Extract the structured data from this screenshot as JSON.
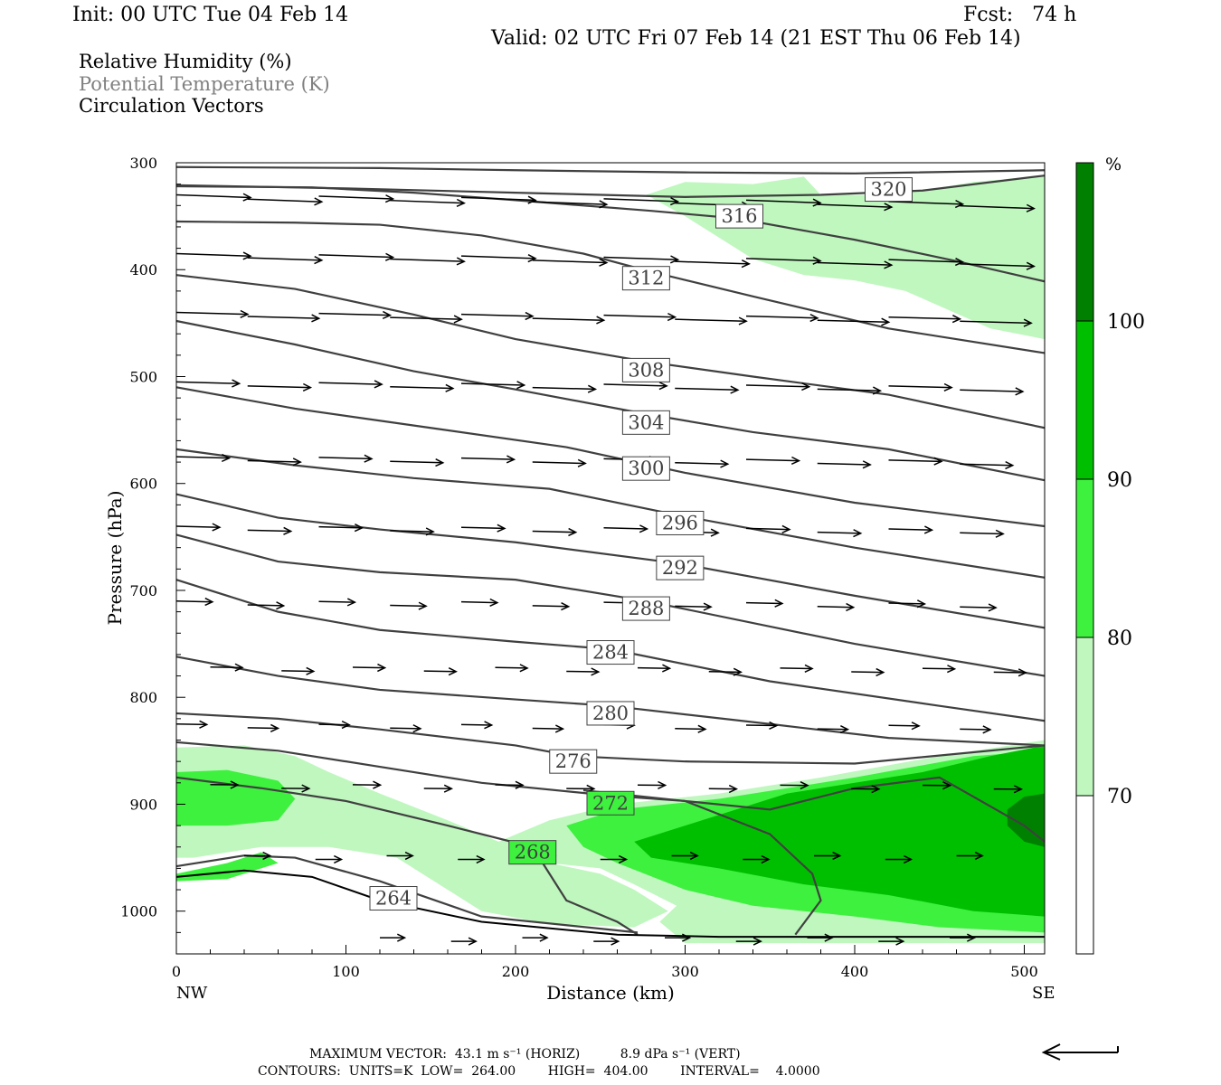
{
  "header": {
    "init": "Init: 00 UTC Tue 04 Feb 14",
    "fcst": "Fcst:   74 h",
    "valid": "Valid: 02 UTC Fri 07 Feb 14 (21 EST Thu 06 Feb 14)"
  },
  "legend": {
    "items": [
      "Relative Humidity (%)",
      "Potential Temperature (K)",
      "Circulation Vectors"
    ]
  },
  "footer": {
    "max_vector": "MAXIMUM VECTOR:  43.1 m s⁻¹ (HORIZ)          8.9 dPa s⁻¹ (VERT)",
    "contours": "CONTOURS:  UNITS=K  LOW=  264.00        HIGH=  404.00        INTERVAL=    4.0000"
  },
  "colors": {
    "rh_70_80": "#bff7bf",
    "rh_80_90": "#3ef13e",
    "rh_90_100": "#00bf00",
    "rh_100": "#008000",
    "contour": "#404040"
  },
  "chart_data": {
    "type": "cross-section",
    "xlabel": "Distance (km)",
    "ylabel": "Pressure (hPa)",
    "xlim": [
      0,
      512
    ],
    "ylim": [
      1040,
      300
    ],
    "x_ticks": [
      "0",
      "100",
      "200",
      "300",
      "400",
      "500"
    ],
    "x_end_labels": [
      "NW",
      "SE"
    ],
    "y_ticks": [
      "300",
      "400",
      "500",
      "600",
      "700",
      "800",
      "900",
      "1000"
    ],
    "colorbar": {
      "unit": "%",
      "levels": [
        "70",
        "80",
        "90",
        "100"
      ]
    },
    "contour_labels": [
      {
        "text": "320",
        "x": 420,
        "p": 325
      },
      {
        "text": "316",
        "x": 332,
        "p": 350
      },
      {
        "text": "312",
        "x": 277,
        "p": 408
      },
      {
        "text": "308",
        "x": 277,
        "p": 494
      },
      {
        "text": "304",
        "x": 277,
        "p": 543
      },
      {
        "text": "300",
        "x": 277,
        "p": 586
      },
      {
        "text": "296",
        "x": 297,
        "p": 637
      },
      {
        "text": "292",
        "x": 297,
        "p": 679
      },
      {
        "text": "288",
        "x": 277,
        "p": 717
      },
      {
        "text": "284",
        "x": 256,
        "p": 758
      },
      {
        "text": "280",
        "x": 256,
        "p": 815
      },
      {
        "text": "276",
        "x": 234,
        "p": 860
      },
      {
        "text": "272",
        "x": 256,
        "p": 899
      },
      {
        "text": "268",
        "x": 210,
        "p": 945
      },
      {
        "text": "264",
        "x": 128,
        "p": 988
      }
    ],
    "isentropes_K": [
      {
        "theta": 324,
        "points": [
          [
            0,
            304
          ],
          [
            120,
            305
          ],
          [
            200,
            307
          ],
          [
            300,
            309
          ],
          [
            400,
            310
          ],
          [
            512,
            307
          ]
        ]
      },
      {
        "theta": 320,
        "points": [
          [
            0,
            321
          ],
          [
            100,
            324
          ],
          [
            200,
            328
          ],
          [
            300,
            332
          ],
          [
            380,
            330
          ],
          [
            440,
            326
          ],
          [
            512,
            312
          ]
        ]
      },
      {
        "theta": 316,
        "points": [
          [
            0,
            322
          ],
          [
            80,
            323
          ],
          [
            140,
            328
          ],
          [
            200,
            335
          ],
          [
            280,
            345
          ],
          [
            330,
            352
          ],
          [
            400,
            372
          ],
          [
            460,
            392
          ],
          [
            512,
            411
          ]
        ]
      },
      {
        "theta": 312,
        "points": [
          [
            0,
            355
          ],
          [
            70,
            356
          ],
          [
            120,
            358
          ],
          [
            180,
            368
          ],
          [
            240,
            385
          ],
          [
            280,
            402
          ],
          [
            340,
            425
          ],
          [
            420,
            455
          ],
          [
            512,
            478
          ]
        ]
      },
      {
        "theta": 308,
        "points": [
          [
            0,
            405
          ],
          [
            70,
            418
          ],
          [
            140,
            442
          ],
          [
            200,
            465
          ],
          [
            277,
            486
          ],
          [
            340,
            500
          ],
          [
            420,
            517
          ],
          [
            512,
            548
          ]
        ]
      },
      {
        "theta": 304,
        "points": [
          [
            0,
            448
          ],
          [
            70,
            470
          ],
          [
            140,
            495
          ],
          [
            200,
            512
          ],
          [
            277,
            535
          ],
          [
            340,
            552
          ],
          [
            420,
            568
          ],
          [
            512,
            597
          ]
        ]
      },
      {
        "theta": 300,
        "points": [
          [
            0,
            510
          ],
          [
            70,
            530
          ],
          [
            150,
            548
          ],
          [
            230,
            566
          ],
          [
            300,
            590
          ],
          [
            400,
            618
          ],
          [
            512,
            640
          ]
        ]
      },
      {
        "theta": 296,
        "points": [
          [
            0,
            568
          ],
          [
            70,
            583
          ],
          [
            140,
            595
          ],
          [
            220,
            605
          ],
          [
            297,
            630
          ],
          [
            400,
            660
          ],
          [
            512,
            688
          ]
        ]
      },
      {
        "theta": 292,
        "points": [
          [
            0,
            610
          ],
          [
            60,
            632
          ],
          [
            120,
            643
          ],
          [
            200,
            655
          ],
          [
            297,
            675
          ],
          [
            400,
            705
          ],
          [
            512,
            735
          ]
        ]
      },
      {
        "theta": 288,
        "points": [
          [
            0,
            648
          ],
          [
            60,
            673
          ],
          [
            120,
            683
          ],
          [
            200,
            690
          ],
          [
            277,
            710
          ],
          [
            400,
            750
          ],
          [
            512,
            780
          ]
        ]
      },
      {
        "theta": 284,
        "points": [
          [
            0,
            690
          ],
          [
            60,
            720
          ],
          [
            120,
            737
          ],
          [
            200,
            748
          ],
          [
            256,
            755
          ],
          [
            350,
            785
          ],
          [
            450,
            808
          ],
          [
            512,
            822
          ]
        ]
      },
      {
        "theta": 280,
        "points": [
          [
            0,
            762
          ],
          [
            60,
            780
          ],
          [
            120,
            793
          ],
          [
            200,
            802
          ],
          [
            256,
            808
          ],
          [
            350,
            825
          ],
          [
            420,
            838
          ],
          [
            512,
            845
          ]
        ]
      },
      {
        "theta": 276,
        "points": [
          [
            0,
            815
          ],
          [
            60,
            820
          ],
          [
            120,
            830
          ],
          [
            200,
            845
          ],
          [
            234,
            855
          ],
          [
            300,
            860
          ],
          [
            400,
            862
          ],
          [
            512,
            845
          ]
        ]
      },
      {
        "theta": 272,
        "points": [
          [
            0,
            842
          ],
          [
            60,
            850
          ],
          [
            120,
            865
          ],
          [
            180,
            880
          ],
          [
            256,
            892
          ],
          [
            300,
            897
          ],
          [
            350,
            905
          ],
          [
            400,
            885
          ],
          [
            450,
            875
          ],
          [
            500,
            920
          ],
          [
            512,
            935
          ]
        ]
      },
      {
        "theta": 268,
        "points": [
          [
            0,
            875
          ],
          [
            50,
            885
          ],
          [
            100,
            897
          ],
          [
            160,
            920
          ],
          [
            210,
            940
          ],
          [
            230,
            990
          ],
          [
            260,
            1010
          ],
          [
            272,
            1022
          ]
        ]
      },
      {
        "theta": 272,
        "points": [
          [
            240,
            887
          ],
          [
            300,
            897
          ],
          [
            350,
            928
          ],
          [
            375,
            965
          ],
          [
            380,
            990
          ],
          [
            365,
            1022
          ]
        ]
      },
      {
        "theta": 264,
        "points": [
          [
            0,
            958
          ],
          [
            40,
            948
          ],
          [
            70,
            950
          ],
          [
            120,
            972
          ],
          [
            180,
            1005
          ],
          [
            272,
            1020
          ]
        ]
      }
    ],
    "surface_points": [
      [
        0,
        968
      ],
      [
        40,
        962
      ],
      [
        80,
        968
      ],
      [
        120,
        990
      ],
      [
        180,
        1010
      ],
      [
        260,
        1022
      ],
      [
        320,
        1024
      ],
      [
        512,
        1024
      ]
    ],
    "rh_regions": [
      {
        "level": "70-80",
        "points": [
          [
            277,
            330
          ],
          [
            300,
            318
          ],
          [
            340,
            320
          ],
          [
            370,
            313
          ],
          [
            380,
            330
          ],
          [
            410,
            330
          ],
          [
            440,
            326
          ],
          [
            470,
            318
          ],
          [
            512,
            312
          ],
          [
            512,
            465
          ],
          [
            480,
            455
          ],
          [
            430,
            420
          ],
          [
            400,
            410
          ],
          [
            370,
            405
          ],
          [
            340,
            390
          ],
          [
            300,
            350
          ]
        ]
      },
      {
        "level": "70-80",
        "points": [
          [
            0,
            847
          ],
          [
            40,
            845
          ],
          [
            70,
            855
          ],
          [
            90,
            870
          ],
          [
            120,
            890
          ],
          [
            160,
            915
          ],
          [
            190,
            935
          ],
          [
            220,
            955
          ],
          [
            250,
            965
          ],
          [
            270,
            980
          ],
          [
            290,
            1000
          ],
          [
            270,
            1015
          ],
          [
            220,
            1012
          ],
          [
            180,
            1000
          ],
          [
            150,
            970
          ],
          [
            130,
            950
          ],
          [
            90,
            940
          ],
          [
            50,
            940
          ],
          [
            10,
            950
          ],
          [
            0,
            950
          ]
        ]
      },
      {
        "level": "70-80",
        "points": [
          [
            190,
            935
          ],
          [
            220,
            915
          ],
          [
            260,
            900
          ],
          [
            320,
            890
          ],
          [
            380,
            875
          ],
          [
            450,
            855
          ],
          [
            512,
            840
          ],
          [
            512,
            1030
          ],
          [
            300,
            1030
          ],
          [
            285,
            1010
          ],
          [
            295,
            995
          ],
          [
            270,
            975
          ],
          [
            250,
            960
          ],
          [
            220,
            955
          ]
        ]
      },
      {
        "level": "80-90",
        "points": [
          [
            0,
            870
          ],
          [
            30,
            868
          ],
          [
            60,
            878
          ],
          [
            70,
            895
          ],
          [
            60,
            915
          ],
          [
            30,
            920
          ],
          [
            0,
            920
          ]
        ]
      },
      {
        "level": "80-90",
        "points": [
          [
            0,
            965
          ],
          [
            30,
            955
          ],
          [
            50,
            945
          ],
          [
            60,
            955
          ],
          [
            30,
            970
          ],
          [
            0,
            972
          ]
        ]
      },
      {
        "level": "80-90",
        "points": [
          [
            230,
            920
          ],
          [
            260,
            905
          ],
          [
            320,
            895
          ],
          [
            400,
            875
          ],
          [
            470,
            855
          ],
          [
            512,
            850
          ],
          [
            512,
            1020
          ],
          [
            450,
            1015
          ],
          [
            400,
            1005
          ],
          [
            340,
            995
          ],
          [
            300,
            980
          ],
          [
            260,
            955
          ],
          [
            240,
            940
          ]
        ]
      },
      {
        "level": "90-100",
        "points": [
          [
            270,
            935
          ],
          [
            320,
            910
          ],
          [
            360,
            890
          ],
          [
            400,
            880
          ],
          [
            440,
            870
          ],
          [
            480,
            855
          ],
          [
            512,
            845
          ],
          [
            512,
            1005
          ],
          [
            470,
            1000
          ],
          [
            420,
            985
          ],
          [
            370,
            975
          ],
          [
            320,
            960
          ],
          [
            280,
            950
          ]
        ]
      },
      {
        "level": "100",
        "points": [
          [
            490,
            905
          ],
          [
            500,
            893
          ],
          [
            512,
            890
          ],
          [
            512,
            940
          ],
          [
            500,
            935
          ],
          [
            490,
            920
          ]
        ]
      }
    ]
  }
}
